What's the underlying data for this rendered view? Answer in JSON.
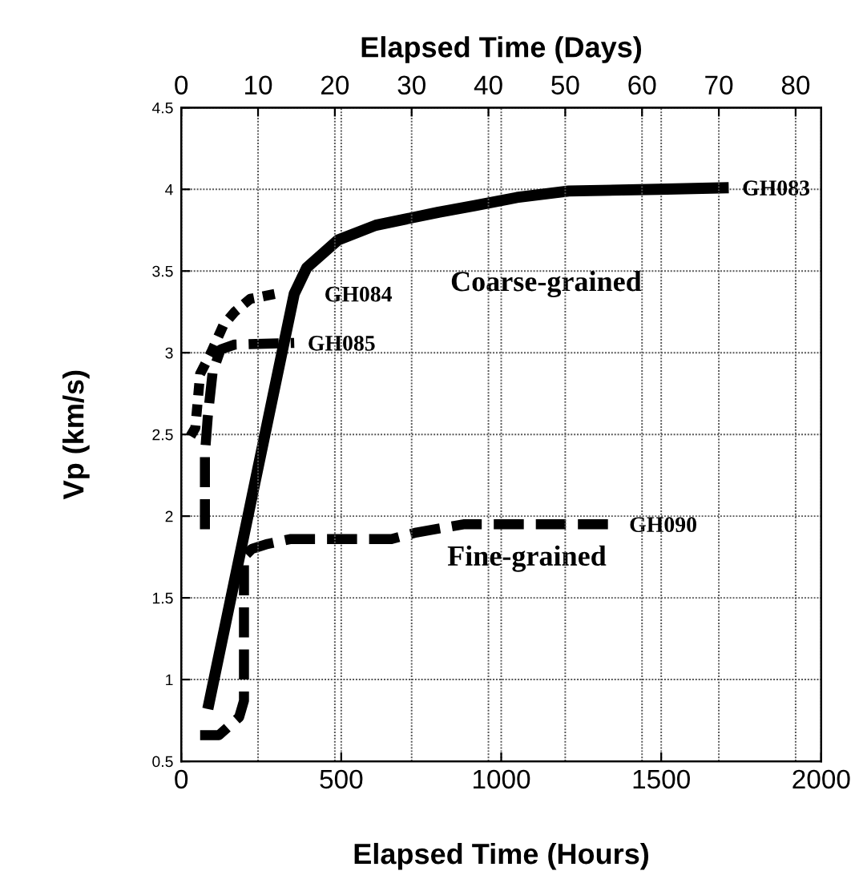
{
  "chart_data": {
    "type": "line",
    "xlabel": "Elapsed Time (Hours)",
    "x2label": "Elapsed Time (Days)",
    "ylabel": "Vp (km/s)",
    "xlim": [
      0,
      2000
    ],
    "xticks": [
      0,
      500,
      1000,
      1500,
      2000
    ],
    "x2lim": [
      0,
      83.33
    ],
    "x2ticks": [
      0,
      10,
      20,
      30,
      40,
      50,
      60,
      70,
      80
    ],
    "ylim": [
      0.5,
      4.5
    ],
    "yticks": [
      0.5,
      1,
      1.5,
      2,
      2.5,
      3,
      3.5,
      4,
      4.5
    ],
    "grid": true,
    "legend": false,
    "marker": "none",
    "series": [
      {
        "name": "GH083",
        "color": "#000000",
        "line_style": "solid",
        "x": [
          83,
          353,
          392,
          490,
          608,
          804,
          917,
          1049,
          1211,
          1490,
          1711
        ],
        "values": [
          0.82,
          3.36,
          3.52,
          3.69,
          3.78,
          3.86,
          3.9,
          3.95,
          3.99,
          4.0,
          4.01
        ]
      },
      {
        "name": "GH084",
        "color": "#000000",
        "line_style": "dotted",
        "x": [
          29,
          44,
          59,
          93,
          132,
          167,
          216,
          294
        ],
        "values": [
          2.49,
          2.54,
          2.87,
          3.0,
          3.17,
          3.25,
          3.33,
          3.36
        ]
      },
      {
        "name": "GH085",
        "color": "#000000",
        "line_style": "dashed",
        "x": [
          74,
          74,
          83,
          98,
          123,
          167,
          353
        ],
        "values": [
          1.92,
          2.38,
          2.61,
          2.88,
          3.02,
          3.05,
          3.06
        ]
      },
      {
        "name": "GH090",
        "color": "#000000",
        "line_style": "dashed",
        "x": [
          59,
          118,
          181,
          196,
          196,
          221,
          270,
          343,
          657,
          735,
          882,
          1358
        ],
        "values": [
          0.66,
          0.66,
          0.77,
          0.87,
          1.75,
          1.8,
          1.83,
          1.86,
          1.86,
          1.9,
          1.95,
          1.95
        ]
      }
    ],
    "annotations": [
      "Coarse-grained",
      "Fine-grained"
    ]
  }
}
